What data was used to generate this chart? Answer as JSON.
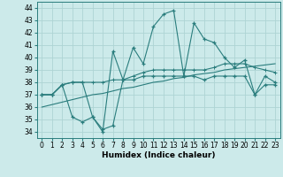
{
  "xlabel": "Humidex (Indice chaleur)",
  "x": [
    0,
    1,
    2,
    3,
    4,
    5,
    6,
    7,
    8,
    9,
    10,
    11,
    12,
    13,
    14,
    15,
    16,
    17,
    18,
    19,
    20,
    21,
    22,
    23
  ],
  "line_max": [
    37.0,
    37.0,
    37.8,
    38.0,
    38.0,
    35.2,
    34.0,
    40.5,
    38.2,
    40.8,
    39.5,
    42.5,
    43.5,
    43.8,
    38.5,
    42.8,
    41.5,
    41.2,
    40.0,
    39.2,
    39.8,
    37.0,
    38.5,
    38.0
  ],
  "line_min": [
    37.0,
    37.0,
    37.8,
    35.2,
    34.8,
    35.2,
    34.2,
    34.5,
    38.2,
    38.2,
    38.5,
    38.5,
    38.5,
    38.5,
    38.5,
    38.5,
    38.2,
    38.5,
    38.5,
    38.5,
    38.5,
    37.0,
    37.8,
    37.8
  ],
  "line_mean": [
    37.0,
    37.0,
    37.8,
    38.0,
    38.0,
    38.0,
    38.0,
    38.2,
    38.2,
    38.5,
    38.8,
    39.0,
    39.0,
    39.0,
    39.0,
    39.0,
    39.0,
    39.2,
    39.5,
    39.5,
    39.5,
    39.2,
    39.0,
    38.8
  ],
  "line_trend": [
    36.0,
    36.2,
    36.4,
    36.6,
    36.8,
    37.0,
    37.1,
    37.3,
    37.5,
    37.6,
    37.8,
    38.0,
    38.1,
    38.3,
    38.4,
    38.6,
    38.7,
    38.8,
    39.0,
    39.1,
    39.2,
    39.3,
    39.4,
    39.5
  ],
  "color": "#2a7d7d",
  "bg_color": "#cceaea",
  "grid_color": "#aed4d4",
  "ylim": [
    33.5,
    44.5
  ],
  "xlim": [
    -0.5,
    23.5
  ],
  "yticks": [
    34,
    35,
    36,
    37,
    38,
    39,
    40,
    41,
    42,
    43,
    44
  ],
  "xticks": [
    0,
    1,
    2,
    3,
    4,
    5,
    6,
    7,
    8,
    9,
    10,
    11,
    12,
    13,
    14,
    15,
    16,
    17,
    18,
    19,
    20,
    21,
    22,
    23
  ]
}
